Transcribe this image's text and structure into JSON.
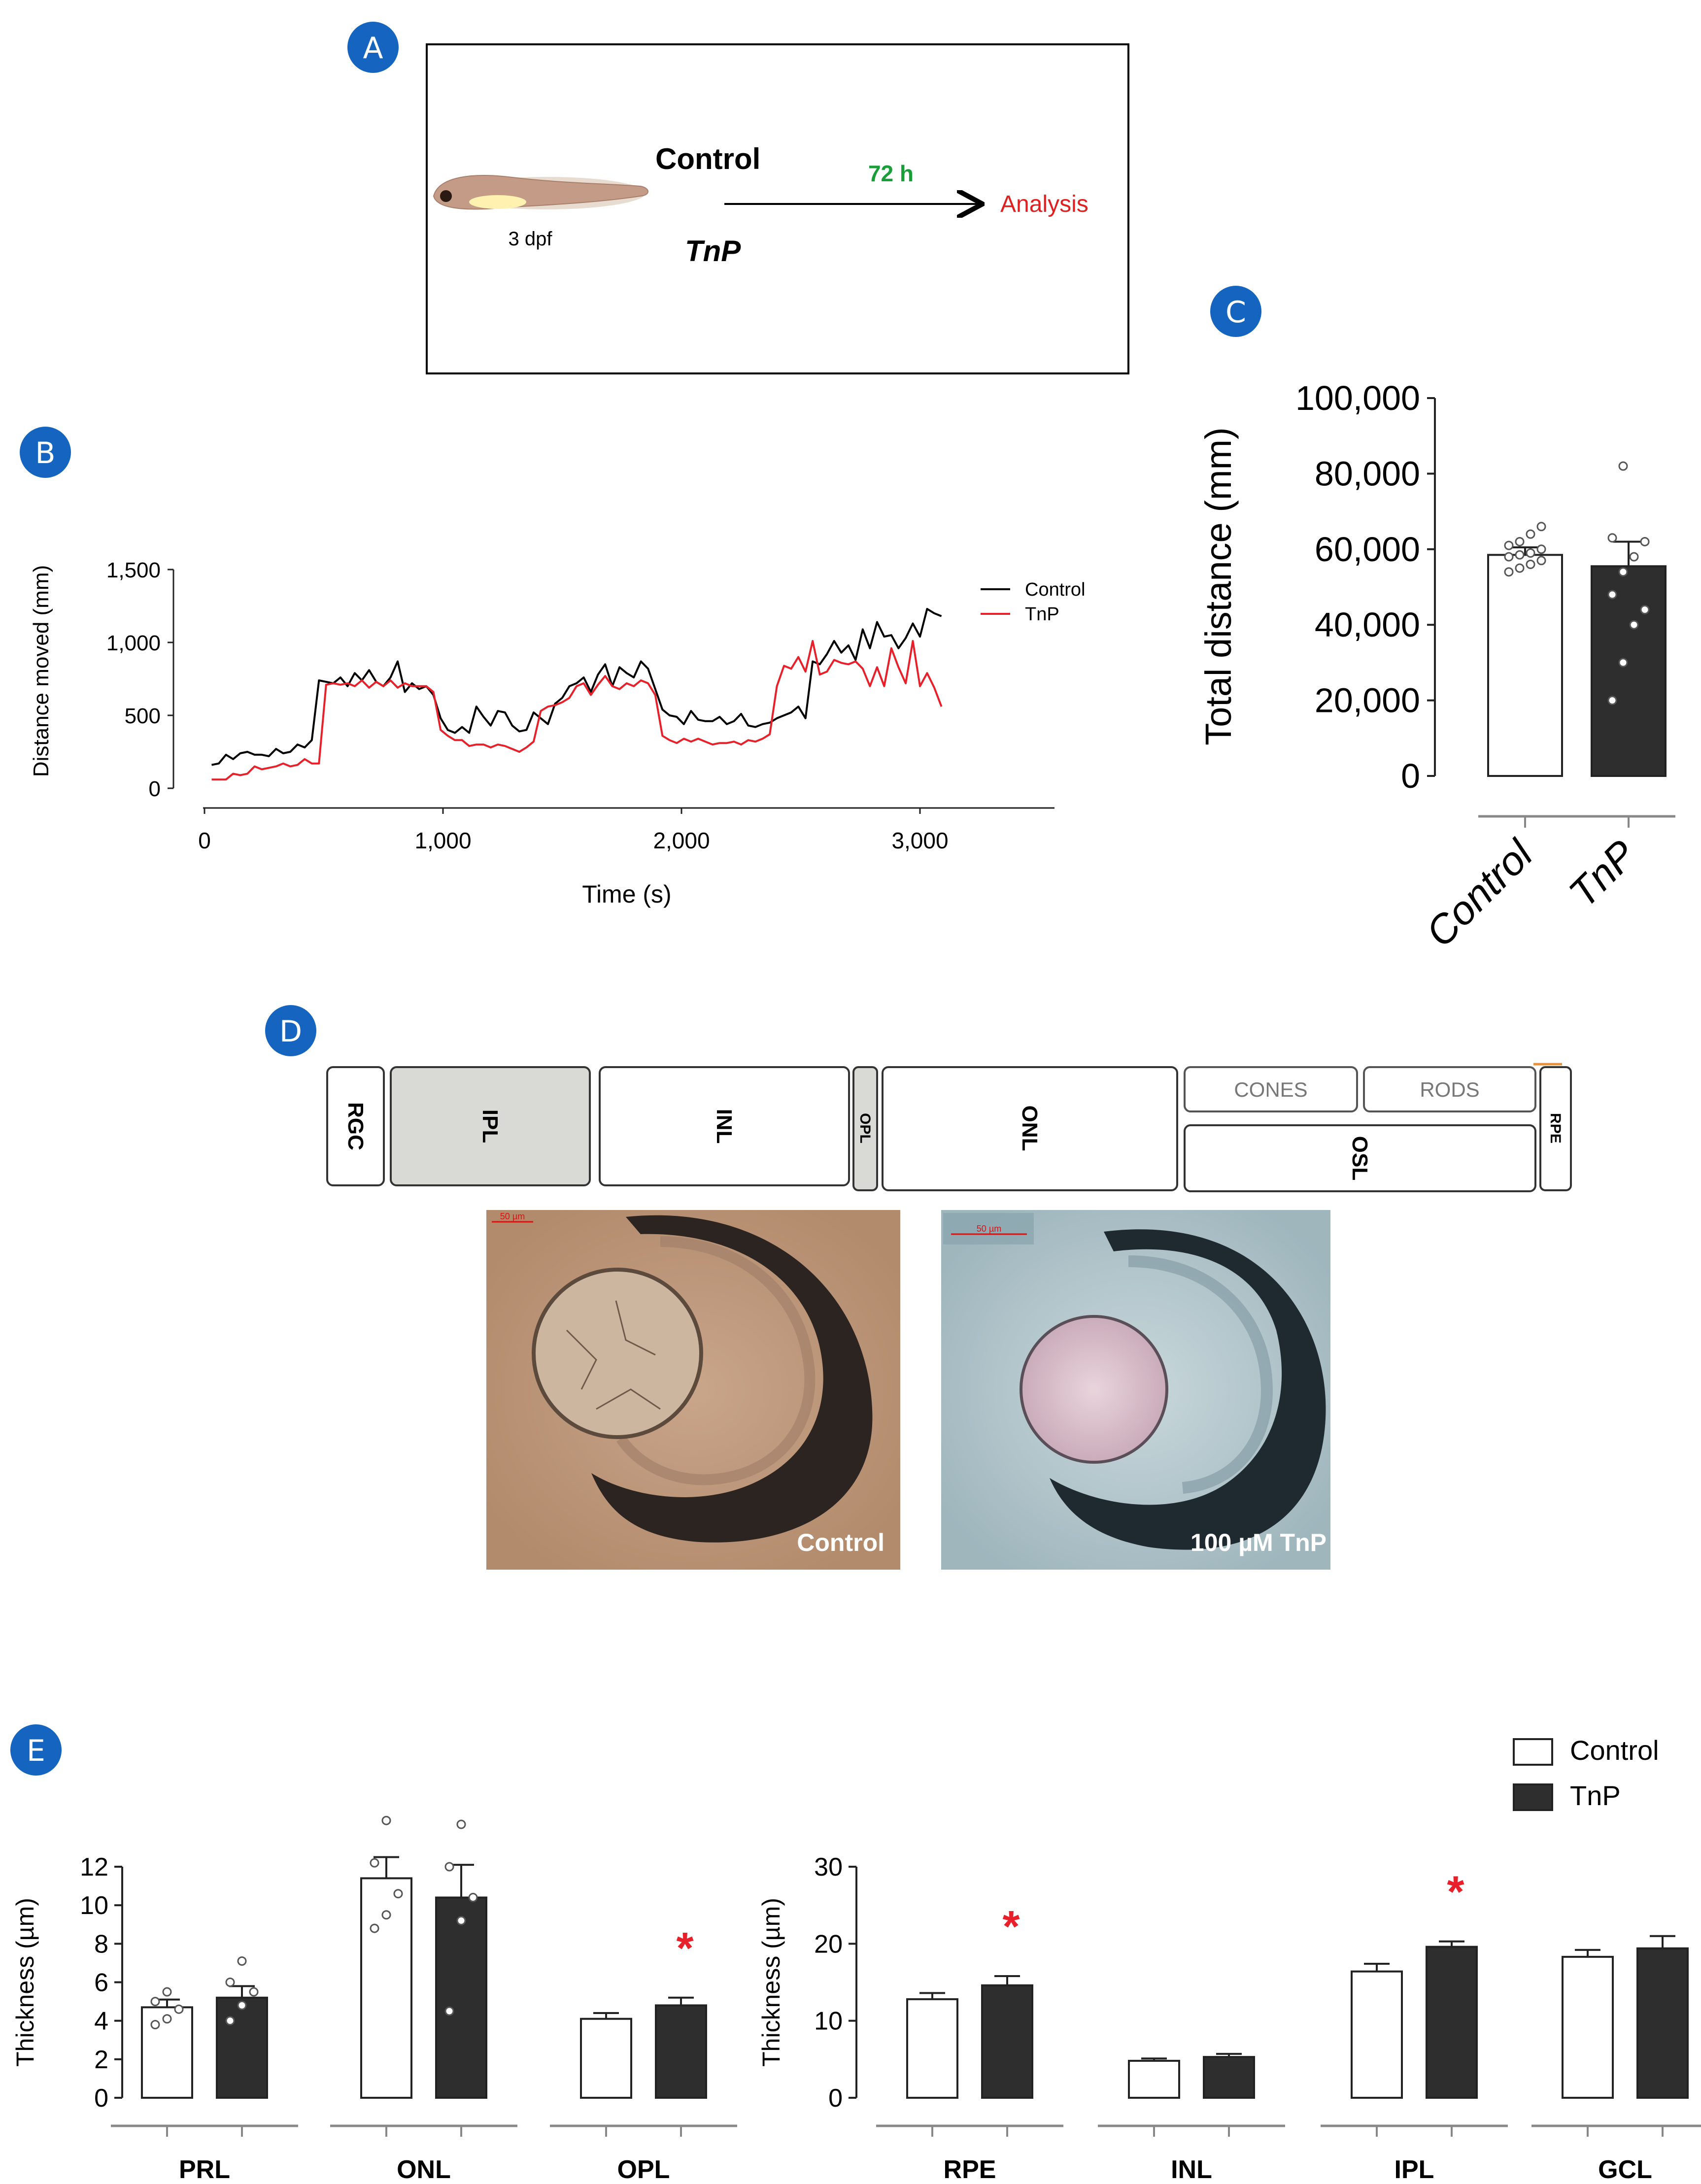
{
  "panels": {
    "A": {
      "label": "A",
      "stage": "3 dpf",
      "control": "Control",
      "tnp": "TnP",
      "time": "72 h",
      "analysis": "Analysis",
      "colors": {
        "time": "#1a9e3a",
        "analysis": "#e02020"
      }
    },
    "B": {
      "label": "B"
    },
    "C": {
      "label": "C"
    },
    "D": {
      "label": "D",
      "layers": {
        "rgc": "RGC",
        "ipl": "IPL",
        "inl": "INL",
        "opl": "OPL",
        "onl": "ONL",
        "cones": "CONES",
        "rods": "RODS",
        "osl": "OSL",
        "rpe": "RPE"
      },
      "scale_bar": "50 µm",
      "image_control_label": "Control",
      "image_tnp_label": "100 µM TnP"
    },
    "E": {
      "label": "E"
    }
  },
  "chart_data": [
    {
      "id": "B",
      "type": "line",
      "xlabel": "Time (s)",
      "ylabel": "Distance moved (mm)",
      "xlim": [
        0,
        3500
      ],
      "ylim": [
        0,
        1500
      ],
      "xticks": [
        "0",
        "1,000",
        "2,000",
        "3,000"
      ],
      "yticks": [
        "0",
        "500",
        "1,000",
        "1,500"
      ],
      "legend": {
        "position": "top-right"
      },
      "series": [
        {
          "name": "Control",
          "color": "#000000",
          "x": [
            30,
            60,
            90,
            120,
            150,
            180,
            210,
            240,
            270,
            300,
            330,
            360,
            390,
            420,
            450,
            480,
            510,
            540,
            570,
            600,
            630,
            660,
            690,
            720,
            750,
            780,
            810,
            840,
            870,
            900,
            930,
            960,
            990,
            1020,
            1050,
            1080,
            1110,
            1140,
            1170,
            1200,
            1230,
            1260,
            1290,
            1320,
            1350,
            1380,
            1410,
            1440,
            1470,
            1500,
            1530,
            1560,
            1590,
            1620,
            1650,
            1680,
            1710,
            1740,
            1770,
            1800,
            1830,
            1860,
            1890,
            1920,
            1950,
            1980,
            2010,
            2040,
            2070,
            2100,
            2130,
            2160,
            2190,
            2220,
            2250,
            2280,
            2310,
            2340,
            2370,
            2400,
            2430,
            2460,
            2490,
            2520,
            2550,
            2580,
            2610,
            2640,
            2670,
            2700,
            2730,
            2760,
            2790,
            2820,
            2850,
            2880,
            2910,
            2940,
            2970,
            3000,
            3030,
            3060,
            3090
          ],
          "y": [
            160,
            170,
            230,
            200,
            240,
            250,
            230,
            230,
            220,
            270,
            240,
            250,
            300,
            280,
            330,
            740,
            730,
            720,
            760,
            700,
            790,
            740,
            810,
            730,
            700,
            760,
            870,
            660,
            720,
            680,
            700,
            640,
            480,
            400,
            380,
            420,
            380,
            560,
            490,
            430,
            530,
            520,
            430,
            390,
            400,
            520,
            480,
            440,
            580,
            620,
            700,
            720,
            760,
            660,
            780,
            850,
            700,
            830,
            790,
            760,
            870,
            820,
            680,
            540,
            500,
            490,
            440,
            530,
            470,
            460,
            460,
            490,
            440,
            460,
            510,
            430,
            420,
            440,
            450,
            480,
            500,
            520,
            560,
            480,
            870,
            850,
            920,
            1010,
            930,
            980,
            880,
            1090,
            960,
            1140,
            1040,
            1050,
            960,
            1030,
            1130,
            1040,
            1230,
            1200,
            1180
          ]
        },
        {
          "name": "TnP",
          "color": "#e8202a",
          "x": [
            30,
            60,
            90,
            120,
            150,
            180,
            210,
            240,
            270,
            300,
            330,
            360,
            390,
            420,
            450,
            480,
            510,
            540,
            570,
            600,
            630,
            660,
            690,
            720,
            750,
            780,
            810,
            840,
            870,
            900,
            930,
            960,
            990,
            1020,
            1050,
            1080,
            1110,
            1140,
            1170,
            1200,
            1230,
            1260,
            1290,
            1320,
            1350,
            1380,
            1410,
            1440,
            1470,
            1500,
            1530,
            1560,
            1590,
            1620,
            1650,
            1680,
            1710,
            1740,
            1770,
            1800,
            1830,
            1860,
            1890,
            1920,
            1950,
            1980,
            2010,
            2040,
            2070,
            2100,
            2130,
            2160,
            2190,
            2220,
            2250,
            2280,
            2310,
            2340,
            2370,
            2400,
            2430,
            2460,
            2490,
            2520,
            2550,
            2580,
            2610,
            2640,
            2670,
            2700,
            2730,
            2760,
            2790,
            2820,
            2850,
            2880,
            2910,
            2940,
            2970,
            3000,
            3030,
            3060,
            3090
          ],
          "y": [
            60,
            60,
            60,
            100,
            90,
            100,
            150,
            130,
            140,
            150,
            170,
            150,
            160,
            200,
            170,
            170,
            710,
            720,
            710,
            720,
            700,
            740,
            690,
            730,
            700,
            740,
            690,
            720,
            700,
            700,
            700,
            660,
            400,
            360,
            330,
            330,
            290,
            300,
            300,
            280,
            300,
            290,
            270,
            250,
            280,
            320,
            530,
            560,
            570,
            590,
            620,
            700,
            720,
            640,
            710,
            770,
            700,
            680,
            720,
            700,
            740,
            720,
            640,
            360,
            330,
            310,
            340,
            320,
            340,
            320,
            300,
            310,
            310,
            320,
            300,
            330,
            320,
            340,
            370,
            700,
            840,
            820,
            900,
            800,
            1010,
            780,
            800,
            880,
            860,
            850,
            870,
            820,
            700,
            830,
            700,
            960,
            830,
            720,
            1010,
            700,
            790,
            690,
            560
          ]
        }
      ]
    },
    {
      "id": "C",
      "type": "bar",
      "ylabel": "Total distance (mm)",
      "ylim": [
        0,
        100000
      ],
      "yticks": [
        "0",
        "20,000",
        "40,000",
        "60,000",
        "80,000",
        "100,000"
      ],
      "categories": [
        "Control",
        "TnP"
      ],
      "values": [
        58500,
        55500
      ],
      "errors": [
        2000,
        6500
      ],
      "fills": [
        "#ffffff",
        "#2e2e2e"
      ],
      "points": [
        [
          54000,
          55000,
          56000,
          57000,
          58000,
          58500,
          59000,
          60000,
          61000,
          62000,
          64000,
          66000
        ],
        [
          20000,
          30000,
          40000,
          44000,
          48000,
          54000,
          58000,
          62000,
          63000,
          82000
        ]
      ]
    },
    {
      "id": "E-left",
      "type": "bar",
      "ylabel": "Thickness (µm)",
      "ylim": [
        0,
        12
      ],
      "yticks": [
        "0",
        "2",
        "4",
        "6",
        "8",
        "10",
        "12"
      ],
      "categories": [
        "PRL",
        "ONL",
        "OPL"
      ],
      "series": [
        {
          "name": "Control",
          "fill": "#ffffff",
          "values": [
            4.7,
            11.4,
            4.1
          ],
          "errors": [
            0.4,
            1.1,
            0.3
          ]
        },
        {
          "name": "TnP",
          "fill": "#2e2e2e",
          "values": [
            5.2,
            10.4,
            4.8
          ],
          "errors": [
            0.6,
            1.7,
            0.4
          ]
        }
      ],
      "points": {
        "Control": [
          [
            3.8,
            4.1,
            4.6,
            5.0,
            5.5
          ],
          [
            8.8,
            9.5,
            10.6,
            12.2,
            14.4
          ]
        ],
        "TnP": [
          [
            4.0,
            4.8,
            5.5,
            6.0,
            7.1
          ],
          [
            4.5,
            9.2,
            10.4,
            12.0,
            14.2
          ]
        ]
      },
      "significance": [
        {
          "category": "OPL",
          "series": "TnP",
          "label": "*"
        }
      ]
    },
    {
      "id": "E-right",
      "type": "bar",
      "ylabel": "Thickness (µm)",
      "ylim": [
        0,
        30
      ],
      "yticks": [
        "0",
        "10",
        "20",
        "30"
      ],
      "categories": [
        "RPE",
        "INL",
        "IPL",
        "GCL"
      ],
      "legend": {
        "position": "top-right",
        "entries": [
          "Control",
          "TnP"
        ]
      },
      "series": [
        {
          "name": "Control",
          "fill": "#ffffff",
          "values": [
            12.8,
            4.8,
            16.4,
            18.3
          ],
          "errors": [
            0.8,
            0.3,
            1.0,
            0.9
          ]
        },
        {
          "name": "TnP",
          "fill": "#2e2e2e",
          "values": [
            14.6,
            5.3,
            19.6,
            19.4
          ],
          "errors": [
            1.2,
            0.4,
            0.7,
            1.6
          ]
        }
      ],
      "significance": [
        {
          "category": "RPE",
          "series": "TnP",
          "label": "*"
        },
        {
          "category": "IPL",
          "series": "TnP",
          "label": "*"
        }
      ]
    }
  ],
  "colors": {
    "badge": "#1565c0",
    "significance": "#e8202a"
  }
}
